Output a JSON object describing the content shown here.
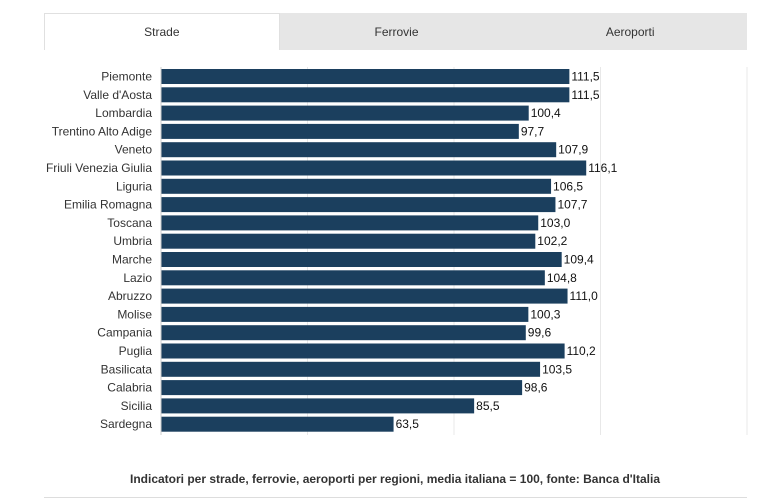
{
  "tabs": [
    {
      "label": "Strade",
      "active": true
    },
    {
      "label": "Ferrovie",
      "active": false
    },
    {
      "label": "Aeroporti",
      "active": false
    }
  ],
  "caption": "Indicatori per strade, ferrovie, aeroporti per regioni, media italiana = 100, fonte: Banca d'Italia",
  "colors": {
    "bar": "#1b3f5e",
    "grid": "#e8e8e8",
    "label": "#333333"
  },
  "chart_data": {
    "type": "bar",
    "orientation": "horizontal",
    "categories": [
      "Piemonte",
      "Valle d'Aosta",
      "Lombardia",
      "Trentino Alto Adige",
      "Veneto",
      "Friuli Venezia Giulia",
      "Liguria",
      "Emilia Romagna",
      "Toscana",
      "Umbria",
      "Marche",
      "Lazio",
      "Abruzzo",
      "Molise",
      "Campania",
      "Puglia",
      "Basilicata",
      "Calabria",
      "Sicilia",
      "Sardegna"
    ],
    "values": [
      111.5,
      111.5,
      100.4,
      97.7,
      107.9,
      116.1,
      106.5,
      107.7,
      103.0,
      102.2,
      109.4,
      104.8,
      111.0,
      100.3,
      99.6,
      110.2,
      103.5,
      98.6,
      85.5,
      63.5
    ],
    "value_labels": [
      "111,5",
      "111,5",
      "100,4",
      "97,7",
      "107,9",
      "116,1",
      "106,5",
      "107,7",
      "103,0",
      "102,2",
      "109,4",
      "104,8",
      "111,0",
      "100,3",
      "99,6",
      "110,2",
      "103,5",
      "98,6",
      "85,5",
      "63,5"
    ],
    "xlim": [
      0,
      160
    ],
    "grid": true,
    "legend": false
  }
}
